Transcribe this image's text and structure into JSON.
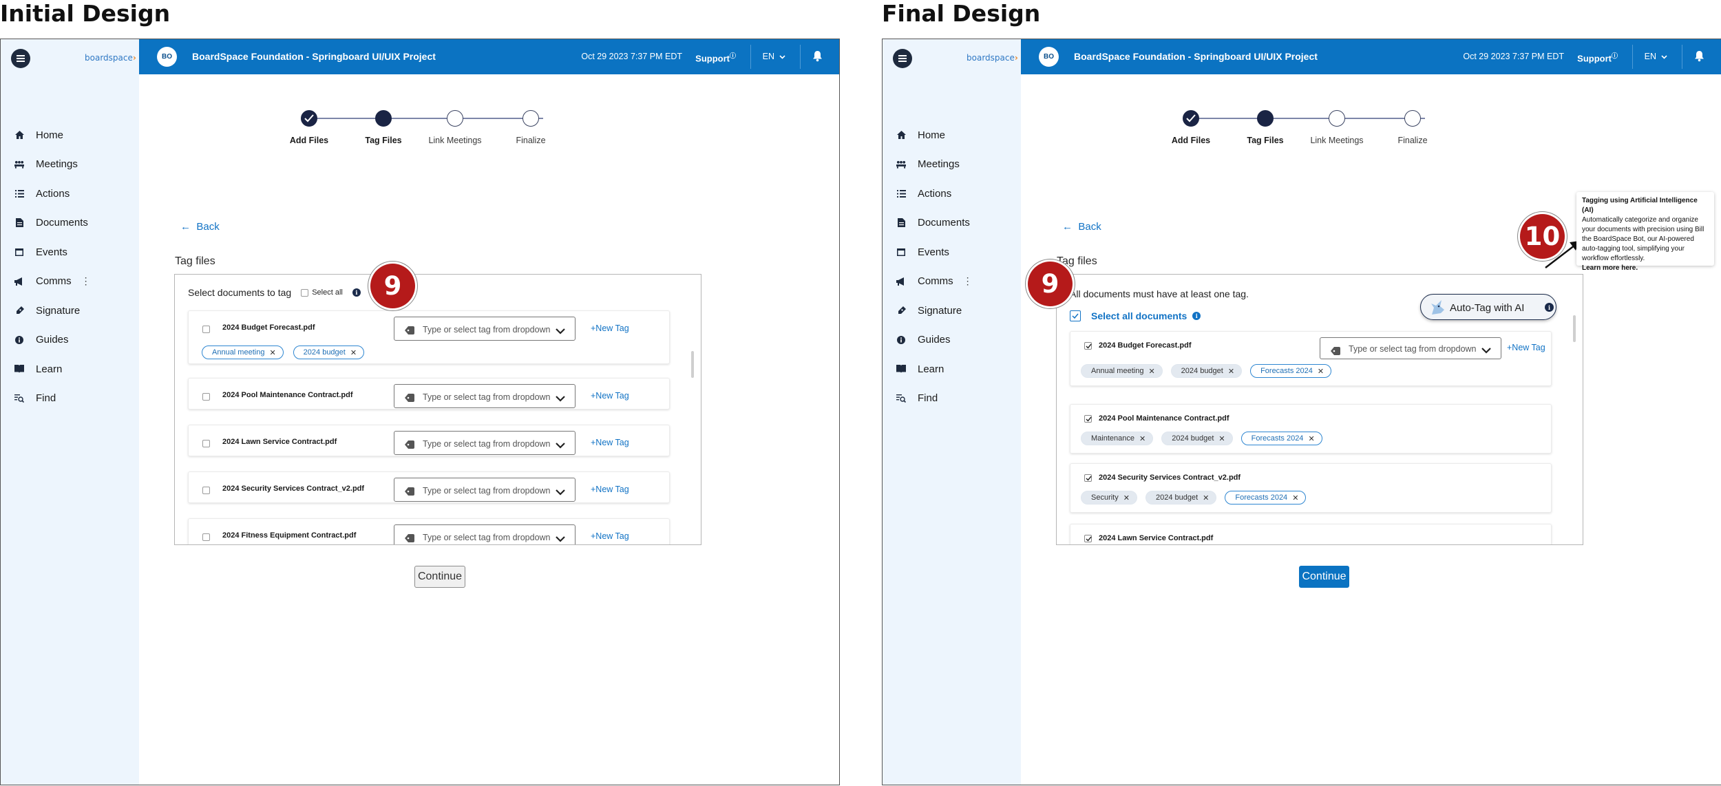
{
  "left_panel": {
    "heading": "Initial Design"
  },
  "right_panel": {
    "heading": "Final Design"
  },
  "logo": {
    "text": "boardspace"
  },
  "topbar": {
    "avatar": "BO",
    "org": "BoardSpace Foundation - Springboard UI/UIX Project",
    "datetime": "Oct 29 2023 7:37 PM EDT",
    "support": "Support",
    "lang": "EN"
  },
  "sidebar": {
    "items": [
      {
        "label": "Home",
        "icon": "home-icon"
      },
      {
        "label": "Meetings",
        "icon": "meetings-icon"
      },
      {
        "label": "Actions",
        "icon": "list-icon"
      },
      {
        "label": "Documents",
        "icon": "document-icon"
      },
      {
        "label": "Events",
        "icon": "calendar-icon"
      },
      {
        "label": "Comms",
        "icon": "megaphone-icon"
      },
      {
        "label": "Signature",
        "icon": "pen-icon"
      },
      {
        "label": "Guides",
        "icon": "info-icon"
      },
      {
        "label": "Learn",
        "icon": "book-icon"
      },
      {
        "label": "Find",
        "icon": "find-icon"
      }
    ]
  },
  "stepper": {
    "steps": [
      "Add Files",
      "Tag Files",
      "Link Meetings",
      "Finalize"
    ],
    "current": 2
  },
  "back": "Back",
  "section_title": "Tag files",
  "initial": {
    "header": "Select documents to tag",
    "select_all": "Select all",
    "badge": "9",
    "dropdown_placeholder": "Type or select tag from dropdown",
    "new_tag": "+New Tag",
    "files": [
      {
        "name": "2024 Budget Forecast.pdf",
        "tags": [
          "Annual meeting",
          "2024 budget"
        ]
      },
      {
        "name": "2024 Pool Maintenance Contract.pdf",
        "tags": []
      },
      {
        "name": "2024 Lawn Service Contract.pdf",
        "tags": []
      },
      {
        "name": "2024 Security Services Contract_v2.pdf",
        "tags": []
      },
      {
        "name": "2024 Fitness Equipment Contract.pdf",
        "tags": []
      }
    ],
    "continue": "Continue"
  },
  "final": {
    "requirement": "All documents must have at least one tag.",
    "select_all": "Select all documents",
    "auto_tag": "Auto-Tag with AI",
    "badge_9": "9",
    "badge_10": "10",
    "dropdown_placeholder": "Type or select tag from dropdown",
    "new_tag": "+New Tag",
    "files": [
      {
        "name": "2024 Budget Forecast.pdf",
        "tags": [
          "Annual meeting",
          "2024 budget"
        ],
        "ai_tags": [
          "Forecasts 2024"
        ]
      },
      {
        "name": "2024 Pool Maintenance Contract.pdf",
        "tags": [
          "Maintenance",
          "2024 budget"
        ],
        "ai_tags": [
          "Forecasts 2024"
        ]
      },
      {
        "name": "2024 Security Services Contract_v2.pdf",
        "tags": [
          "Security",
          "2024 budget"
        ],
        "ai_tags": [
          "Forecasts 2024"
        ]
      },
      {
        "name": "2024 Lawn Service Contract.pdf",
        "tags": [],
        "ai_tags": []
      }
    ],
    "continue": "Continue",
    "tooltip": {
      "title": "Tagging using Artificial Intelligence (AI)",
      "body": "Automatically categorize and organize your documents with precision using Bill the BoardSpace Bot, our AI-powered auto-tagging tool, simplifying your workflow effortlessly.",
      "link": "Learn more here."
    }
  },
  "colors": {
    "brand_blue": "#0b73c2",
    "sidebar_bg": "#edf5fd",
    "badge_red": "#b51a1a",
    "navy": "#1a2444"
  }
}
